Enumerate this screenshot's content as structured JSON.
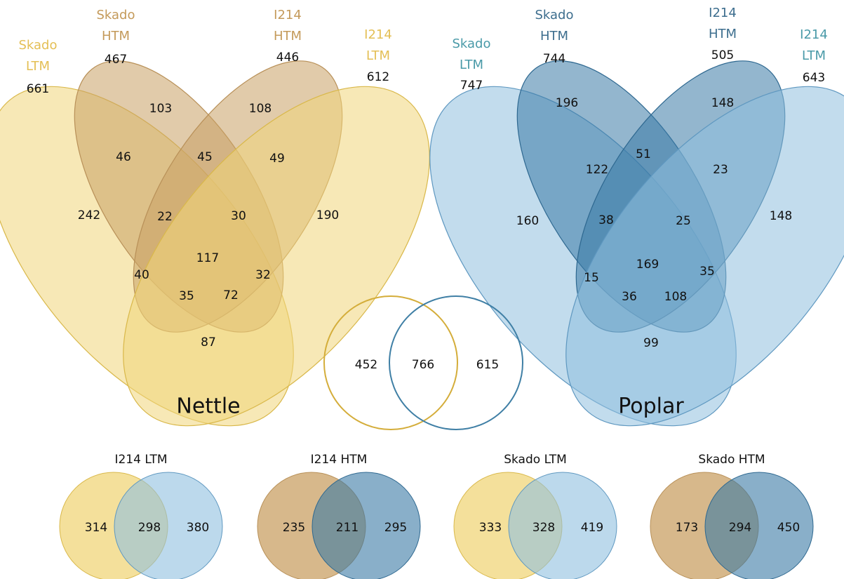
{
  "nettle": {
    "title": "Nettle",
    "sets": [
      {
        "lines": [
          "Skado",
          "LTM"
        ],
        "total": 661
      },
      {
        "lines": [
          "Skado",
          "HTM"
        ],
        "total": 467
      },
      {
        "lines": [
          "I214",
          "HTM"
        ],
        "total": 446
      },
      {
        "lines": [
          "I214",
          "LTM"
        ],
        "total": 612
      }
    ],
    "regions": [
      103,
      108,
      46,
      45,
      49,
      242,
      22,
      30,
      190,
      117,
      40,
      32,
      35,
      72,
      87
    ]
  },
  "poplar": {
    "title": "Poplar",
    "sets": [
      {
        "lines": [
          "Skado",
          "LTM"
        ],
        "total": 747
      },
      {
        "lines": [
          "Skado",
          "HTM"
        ],
        "total": 744
      },
      {
        "lines": [
          "I214",
          "HTM"
        ],
        "total": 505
      },
      {
        "lines": [
          "I214",
          "LTM"
        ],
        "total": 643
      }
    ],
    "regions": [
      196,
      148,
      51,
      122,
      23,
      160,
      38,
      25,
      148,
      169,
      35,
      15,
      36,
      108,
      99
    ]
  },
  "overlap": {
    "values": [
      452,
      766,
      615
    ]
  },
  "pairs": [
    {
      "title": "I214 LTM",
      "values": [
        314,
        298,
        380
      ]
    },
    {
      "title": "I214 HTM",
      "values": [
        235,
        211,
        295
      ]
    },
    {
      "title": "Skado LTM",
      "values": [
        333,
        328,
        419
      ]
    },
    {
      "title": "Skado HTM",
      "values": [
        173,
        294,
        450
      ]
    }
  ]
}
